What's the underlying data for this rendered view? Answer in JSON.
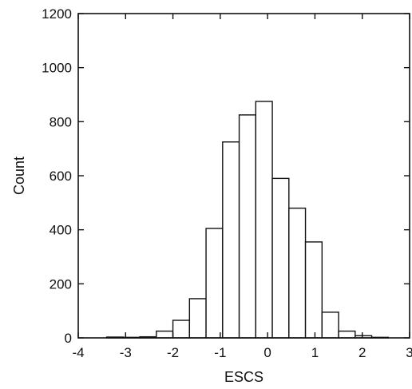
{
  "chart_data": {
    "type": "bar",
    "title": "",
    "xlabel": "ESCS",
    "ylabel": "Count",
    "xlim": [
      -4,
      3
    ],
    "ylim": [
      0,
      1200
    ],
    "x_ticks": [
      -4,
      -3,
      -2,
      -1,
      0,
      1,
      2,
      3
    ],
    "y_ticks": [
      0,
      200,
      400,
      600,
      800,
      1000,
      1200
    ],
    "grid": false,
    "legend": "none",
    "bin_width": 0.35,
    "bins": [
      {
        "start": -3.4,
        "end": -3.05,
        "value": 3
      },
      {
        "start": -3.05,
        "end": -2.7,
        "value": 2
      },
      {
        "start": -2.7,
        "end": -2.35,
        "value": 4
      },
      {
        "start": -2.35,
        "end": -2.0,
        "value": 25
      },
      {
        "start": -2.0,
        "end": -1.65,
        "value": 65
      },
      {
        "start": -1.65,
        "end": -1.3,
        "value": 145
      },
      {
        "start": -1.3,
        "end": -0.95,
        "value": 405
      },
      {
        "start": -0.95,
        "end": -0.6,
        "value": 725
      },
      {
        "start": -0.6,
        "end": -0.25,
        "value": 825
      },
      {
        "start": -0.25,
        "end": 0.1,
        "value": 875
      },
      {
        "start": 0.1,
        "end": 0.45,
        "value": 590
      },
      {
        "start": 0.45,
        "end": 0.8,
        "value": 480
      },
      {
        "start": 0.8,
        "end": 1.15,
        "value": 355
      },
      {
        "start": 1.15,
        "end": 1.5,
        "value": 95
      },
      {
        "start": 1.5,
        "end": 1.85,
        "value": 25
      },
      {
        "start": 1.85,
        "end": 2.2,
        "value": 8
      },
      {
        "start": 2.2,
        "end": 2.55,
        "value": 2
      }
    ],
    "colors": {
      "bar_fill": "#ffffff",
      "bar_stroke": "#111111",
      "axis": "#111111",
      "background": "#ffffff"
    }
  }
}
